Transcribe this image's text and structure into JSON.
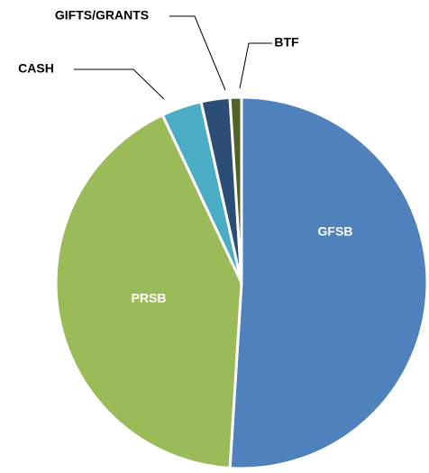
{
  "chart_data": {
    "type": "pie",
    "categories": [
      "GFSB",
      "PRSB",
      "CASH",
      "GIFTS/GRANTS",
      "BTF"
    ],
    "values": [
      51,
      42,
      3.5,
      2.5,
      1
    ],
    "colors": [
      "#4f81bd",
      "#9bbb59",
      "#4bacc6",
      "#2c4d75",
      "#4f6228"
    ]
  }
}
